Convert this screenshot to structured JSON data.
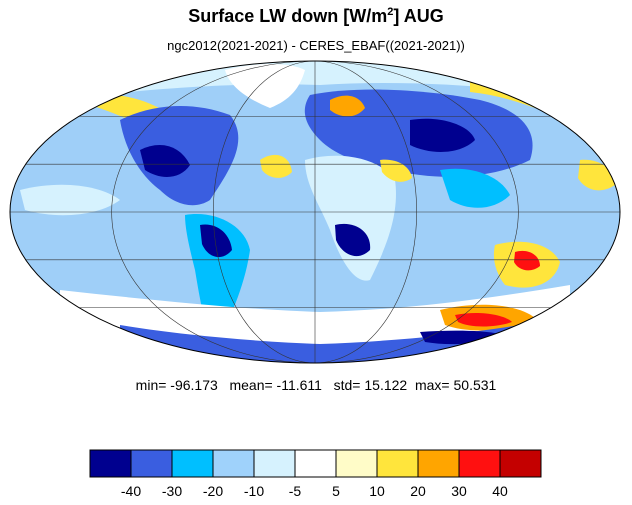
{
  "title": {
    "main": "Surface LW down [W/m",
    "superscript": "2",
    "suffix": "]  AUG"
  },
  "subtitle": "ngc2012(2021-2021) - CERES_EBAF((2021-2021))",
  "stats": {
    "min_label": "min=",
    "min": "-96.173",
    "mean_label": "mean=",
    "mean": "-11.611",
    "std_label": "std=",
    "std": "15.122",
    "max_label": "max=",
    "max": "50.531"
  },
  "map": {
    "projection": "mollweide",
    "ocean_color": "#9fcff8",
    "outline_color": "#000000",
    "grid_color": "#333333"
  },
  "colorbar": {
    "colors": [
      "#00008f",
      "#3a5ee0",
      "#00bfff",
      "#9fd2fb",
      "#d6f2fe",
      "#ffffff",
      "#fffcc8",
      "#ffe53c",
      "#ffa500",
      "#ff1010",
      "#c40000"
    ],
    "labels": [
      "-40",
      "-30",
      "-20",
      "-10",
      "-5",
      "5",
      "10",
      "20",
      "30",
      "40"
    ]
  }
}
